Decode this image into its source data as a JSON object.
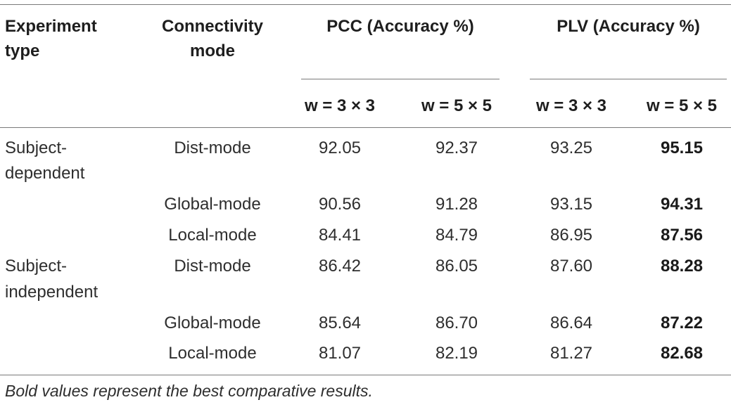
{
  "table": {
    "headers": {
      "experiment_type_l1": "Experiment",
      "experiment_type_l2": "type",
      "connectivity_l1": "Connectivity",
      "connectivity_l2": "mode",
      "pcc": "PCC (Accuracy %)",
      "plv": "PLV (Accuracy %)",
      "sub": [
        "w = 3 × 3",
        "w = 5 × 5",
        "w = 3 × 3",
        "w = 5 × 5"
      ]
    },
    "rows": [
      {
        "exp_l1": "Subject-",
        "exp_l2": "dependent",
        "mode": "Dist-mode",
        "values": [
          "92.05",
          "92.37",
          "93.25",
          "95.15"
        ]
      },
      {
        "exp_l1": "",
        "exp_l2": "",
        "mode": "Global-mode",
        "values": [
          "90.56",
          "91.28",
          "93.15",
          "94.31"
        ]
      },
      {
        "exp_l1": "",
        "exp_l2": "",
        "mode": "Local-mode",
        "values": [
          "84.41",
          "84.79",
          "86.95",
          "87.56"
        ]
      },
      {
        "exp_l1": "Subject-",
        "exp_l2": "independent",
        "mode": "Dist-mode",
        "values": [
          "86.42",
          "86.05",
          "87.60",
          "88.28"
        ]
      },
      {
        "exp_l1": "",
        "exp_l2": "",
        "mode": "Global-mode",
        "values": [
          "85.64",
          "86.70",
          "86.64",
          "87.22"
        ]
      },
      {
        "exp_l1": "",
        "exp_l2": "",
        "mode": "Local-mode",
        "values": [
          "81.07",
          "82.19",
          "81.27",
          "82.68"
        ]
      }
    ],
    "footnote": "Bold values represent the best comparative results."
  }
}
